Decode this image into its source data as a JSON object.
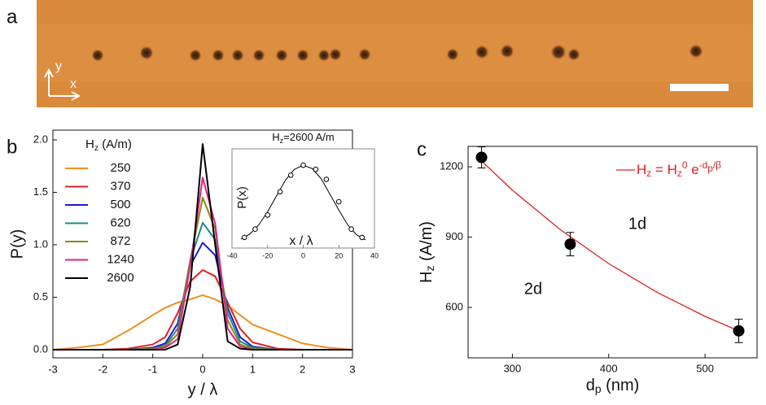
{
  "chart_data": [
    {
      "type": "image",
      "panel_label": "a",
      "axis_labels": [
        "y",
        "x"
      ]
    },
    {
      "type": "line",
      "panel_label": "b",
      "x_label": "y / λ",
      "y_label": "P(y)",
      "legend_title": [
        {
          "text": "H"
        },
        {
          "text": "z",
          "pos": "sub"
        },
        {
          "text": " (A/m)"
        }
      ],
      "xlim": [
        -3,
        3
      ],
      "xticks": [
        -3,
        -2,
        -1,
        0,
        1,
        2,
        3
      ],
      "ylim": [
        0,
        2
      ],
      "yticks": [
        {
          "value": 0,
          "label": "0.0"
        },
        {
          "value": 0.5,
          "label": "0.5"
        },
        {
          "value": 1,
          "label": "1.0"
        },
        {
          "value": 1.5,
          "label": "1.5"
        },
        {
          "value": 2,
          "label": "2.0"
        }
      ],
      "x": [
        -3,
        -2.5,
        -2,
        -1.5,
        -1,
        -0.75,
        -0.5,
        -0.25,
        0,
        0.25,
        0.5,
        0.75,
        1,
        1.5,
        2,
        2.5,
        3
      ],
      "series": [
        {
          "name": "250",
          "color": "#f0901e",
          "values": [
            0,
            0.02,
            0.05,
            0.18,
            0.33,
            0.4,
            0.45,
            0.48,
            0.52,
            0.48,
            0.42,
            0.33,
            0.24,
            0.15,
            0.06,
            0.02,
            0
          ]
        },
        {
          "name": "370",
          "color": "#e02020",
          "values": [
            0,
            0,
            0,
            0.01,
            0.05,
            0.12,
            0.35,
            0.65,
            0.76,
            0.7,
            0.45,
            0.2,
            0.07,
            0.01,
            0,
            0,
            0
          ]
        },
        {
          "name": "500",
          "color": "#1a1ad0",
          "values": [
            0,
            0,
            0,
            0,
            0.02,
            0.06,
            0.25,
            0.8,
            1.02,
            0.9,
            0.4,
            0.12,
            0.03,
            0,
            0,
            0,
            0
          ]
        },
        {
          "name": "620",
          "color": "#1a8a8a",
          "values": [
            0,
            0,
            0,
            0,
            0.01,
            0.04,
            0.2,
            0.85,
            1.21,
            1.05,
            0.35,
            0.08,
            0.02,
            0,
            0,
            0,
            0
          ]
        },
        {
          "name": "872",
          "color": "#8a8a10",
          "values": [
            0,
            0,
            0,
            0,
            0.01,
            0.03,
            0.15,
            0.85,
            1.45,
            1.15,
            0.28,
            0.05,
            0.01,
            0,
            0,
            0,
            0
          ]
        },
        {
          "name": "1240",
          "color": "#e0208a",
          "values": [
            0,
            0,
            0,
            0,
            0,
            0.02,
            0.1,
            0.8,
            1.64,
            1.2,
            0.2,
            0.03,
            0,
            0,
            0,
            0,
            0
          ]
        },
        {
          "name": "2600",
          "color": "#000000",
          "values": [
            0,
            0,
            0,
            0,
            0,
            0,
            0.05,
            0.6,
            1.96,
            1.0,
            0.08,
            0.01,
            0,
            0,
            0,
            0,
            0
          ]
        }
      ],
      "inset": {
        "title": [
          {
            "text": "H"
          },
          {
            "text": "z",
            "pos": "sub"
          },
          {
            "text": "=2600 A/m"
          }
        ],
        "x_label": "x  /  λ",
        "y_label": "P(x)",
        "xlim": [
          -40,
          40
        ],
        "xticks": [
          -40,
          -20,
          0,
          20,
          40
        ],
        "ylim": [
          0,
          1
        ],
        "points": {
          "x": [
            -33,
            -27,
            -20,
            -13,
            -7,
            0,
            7,
            13,
            20,
            27,
            33
          ],
          "values": [
            0.05,
            0.15,
            0.32,
            0.6,
            0.8,
            0.92,
            0.87,
            0.75,
            0.48,
            0.15,
            0.05
          ]
        },
        "fit": {
          "x": [
            -35,
            -30,
            -25,
            -20,
            -15,
            -10,
            -5,
            0,
            5,
            10,
            15,
            20,
            25,
            30,
            35
          ],
          "values": [
            0.03,
            0.09,
            0.2,
            0.36,
            0.55,
            0.74,
            0.87,
            0.92,
            0.88,
            0.76,
            0.57,
            0.38,
            0.2,
            0.08,
            0.02
          ]
        }
      }
    },
    {
      "type": "scatter",
      "panel_label": "c",
      "x_label": [
        {
          "text": "d"
        },
        {
          "text": "p",
          "pos": "sub"
        },
        {
          "text": " (nm)"
        }
      ],
      "y_label": [
        {
          "text": "H"
        },
        {
          "text": "z",
          "pos": "sub"
        },
        {
          "text": " (A/m)"
        }
      ],
      "xlim": [
        254,
        554
      ],
      "xticks": [
        300,
        400,
        500
      ],
      "ylim": [
        385,
        1287
      ],
      "yticks": [
        600,
        900,
        1200
      ],
      "points": {
        "x": [
          268,
          360,
          535
        ],
        "values": [
          1240,
          870,
          500
        ],
        "errors": [
          45,
          50,
          50
        ],
        "color": "#000000"
      },
      "fit": {
        "color": "#e02020",
        "x": [
          268,
          300,
          350,
          400,
          450,
          500,
          540
        ],
        "values": [
          1225,
          1100,
          931,
          787,
          665,
          562,
          491
        ],
        "name": [
          {
            "text": "H"
          },
          {
            "text": "z",
            "pos": "sub"
          },
          {
            "text": " = H"
          },
          {
            "text": "z",
            "pos": "sub"
          },
          {
            "text": "0",
            "pos": "sup"
          },
          {
            "text": " e"
          },
          {
            "text": "-d",
            "pos": "sup"
          },
          {
            "text": "p",
            "pos": "sub2"
          },
          {
            "text": "/β",
            "pos": "sup"
          }
        ]
      },
      "annotations": [
        "1d",
        "2d"
      ]
    }
  ]
}
